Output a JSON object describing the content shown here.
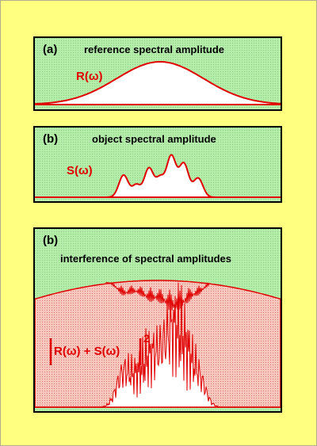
{
  "panels": [
    {
      "label": "(a)",
      "title": "reference spectral amplitude",
      "function_label": "R(ω)"
    },
    {
      "label": "(b)",
      "title": "object spectral amplitude",
      "function_label": "S(ω)"
    },
    {
      "label": "(b)",
      "title": "interference of spectral amplitudes",
      "function_label": "R(ω) + S(ω)",
      "exponent": "2"
    }
  ],
  "colors": {
    "page_background": "#ffff80",
    "panel_background": "#a8e8a0",
    "curve": "#e00000",
    "filled_area": "#f4b8b0",
    "peak_fill": "#ffffff"
  }
}
